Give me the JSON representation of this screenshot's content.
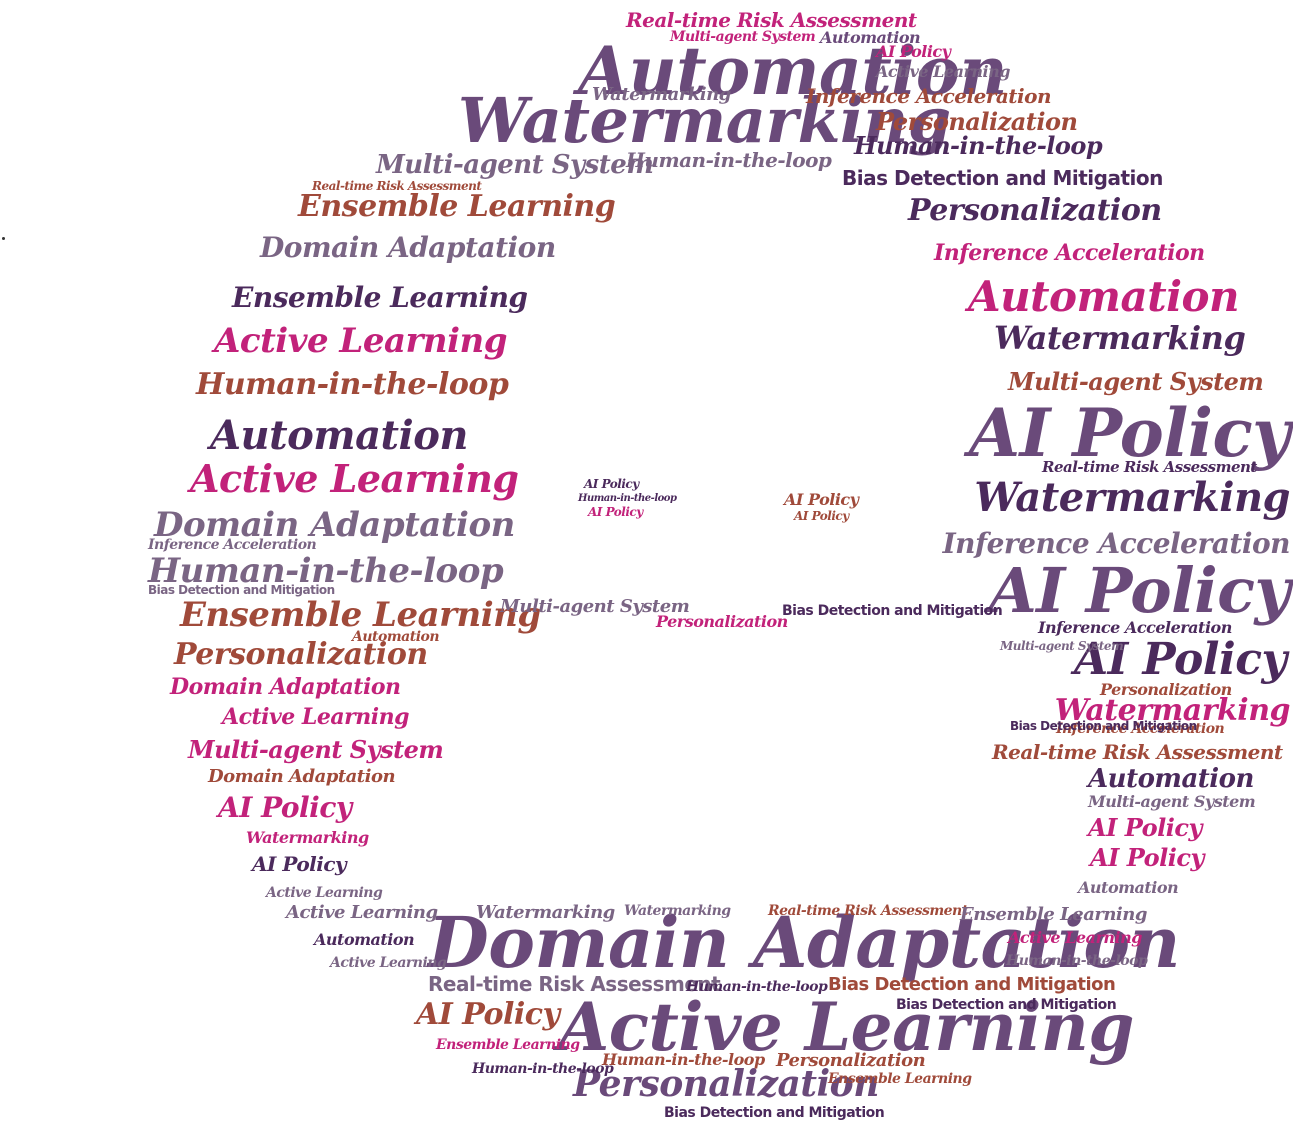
{
  "palette": {
    "plum": "#4b2a5c",
    "purple": "#6a4a7a",
    "magenta": "#c2227a",
    "rust": "#a04a3a",
    "mauve": "#7a6584"
  },
  "words": {
    "automation": "Automation",
    "watermarking": "Watermarking",
    "domain_adaptation": "Domain Adaptation",
    "active_learning": "Active Learning",
    "personalization": "Personalization",
    "ai_policy": "AI Policy",
    "ensemble_learning": "Ensemble Learning",
    "human_in_the_loop": "Human-in-the-loop",
    "multi_agent_system": "Multi-agent System",
    "inference_acceleration": "Inference Acceleration",
    "bias_detection": "Bias Detection and Mitigation",
    "real_time_risk": "Real-time Risk Assessment"
  }
}
